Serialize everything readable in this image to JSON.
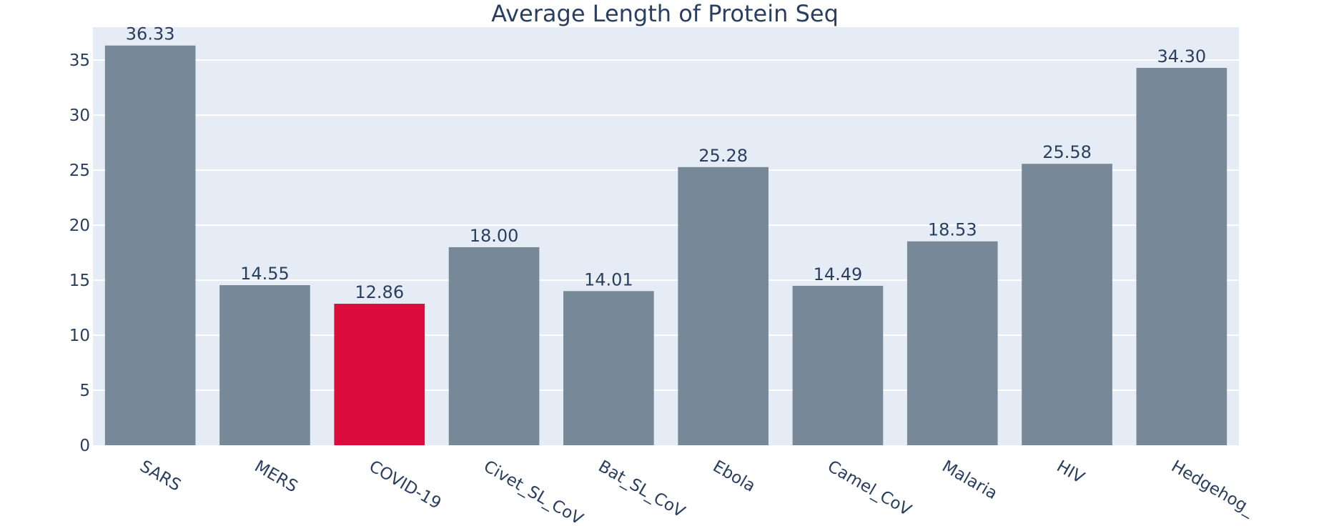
{
  "chart_data": {
    "type": "bar",
    "title": "Average Length of Protein Seq",
    "xlabel": "",
    "ylabel": "",
    "categories": [
      "SARS",
      "MERS",
      "COVID-19",
      "Civet_SL_CoV",
      "Bat_SL_CoV",
      "Ebola",
      "Camel_CoV",
      "Malaria",
      "HIV",
      "Hedgehog_"
    ],
    "values": [
      36.33,
      14.55,
      12.86,
      18.0,
      14.01,
      25.28,
      14.49,
      18.53,
      25.58,
      34.3
    ],
    "value_labels": [
      "36.33",
      "14.55",
      "12.86",
      "18.00",
      "14.01",
      "25.28",
      "14.49",
      "18.53",
      "25.58",
      "34.30"
    ],
    "ylim": [
      0,
      38
    ],
    "yticks": [
      0,
      5,
      10,
      15,
      20,
      25,
      30,
      35
    ],
    "grid": true,
    "legend": "none",
    "colors": {
      "bar_default": "#778899",
      "bar_highlight": "#dc0c3c",
      "highlight_category": "COVID-19",
      "plot_background": "#e5ecf6",
      "grid": "#ffffff",
      "text": "#2a3f5f"
    }
  }
}
